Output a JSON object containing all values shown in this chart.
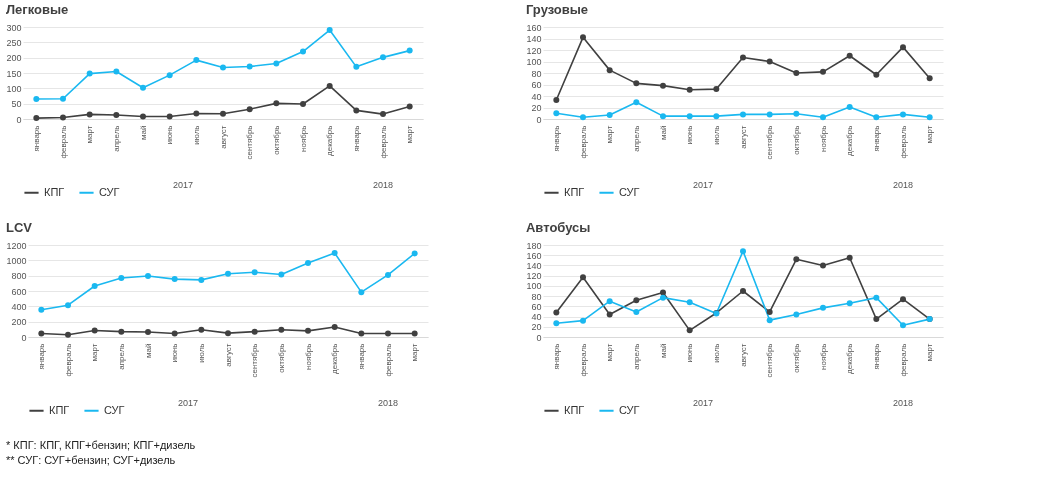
{
  "chart_data": [
    {
      "type": "line",
      "title": "Легковые",
      "categories": [
        "январь",
        "февраль",
        "март",
        "апрель",
        "май",
        "июнь",
        "июль",
        "август",
        "сентябрь",
        "октябрь",
        "ноябрь",
        "декабрь",
        "январь",
        "февраль",
        "март"
      ],
      "annotations": [
        "2017",
        "2018"
      ],
      "ylim": [
        0,
        300
      ],
      "yticks": [
        0,
        50,
        100,
        150,
        200,
        250,
        300
      ],
      "grid": "y",
      "legend": "bottom",
      "marker": "circle",
      "series": [
        {
          "name": "КПГ",
          "color": "#404040",
          "values": [
            3,
            5,
            15,
            13,
            8,
            8,
            18,
            17,
            32,
            51,
            49,
            108,
            28,
            16,
            41
          ]
        },
        {
          "name": "СУГ",
          "color": "#1ab8f0",
          "values": [
            65,
            66,
            148,
            155,
            102,
            143,
            192,
            168,
            171,
            181,
            220,
            290,
            170,
            201,
            223
          ]
        }
      ]
    },
    {
      "type": "line",
      "title": "Грузовые",
      "categories": [
        "январь",
        "февраль",
        "март",
        "апрель",
        "май",
        "июнь",
        "июль",
        "август",
        "сентябрь",
        "октябрь",
        "ноябрь",
        "декабрь",
        "январь",
        "февраль",
        "март"
      ],
      "annotations": [
        "2017",
        "2018"
      ],
      "ylim": [
        0,
        160
      ],
      "yticks": [
        0,
        20,
        40,
        60,
        80,
        100,
        120,
        140,
        160
      ],
      "grid": "y",
      "legend": "bottom",
      "marker": "circle",
      "series": [
        {
          "name": "КПГ",
          "color": "#404040",
          "values": [
            33,
            142,
            85,
            62,
            58,
            51,
            52,
            107,
            100,
            80,
            82,
            110,
            77,
            125,
            71
          ]
        },
        {
          "name": "СУГ",
          "color": "#1ab8f0",
          "values": [
            10,
            3,
            7,
            29,
            5,
            5,
            5,
            8,
            8,
            9,
            3,
            21,
            3,
            8,
            3
          ]
        }
      ]
    },
    {
      "type": "line",
      "title": "LCV",
      "categories": [
        "январь",
        "февраль",
        "март",
        "апрель",
        "май",
        "июнь",
        "июль",
        "август",
        "сентябрь",
        "октябрь",
        "ноябрь",
        "декабрь",
        "январь",
        "февраль",
        "март"
      ],
      "annotations": [
        "2017",
        "2018"
      ],
      "ylim": [
        0,
        1200
      ],
      "yticks": [
        0,
        200,
        400,
        600,
        800,
        1000,
        1200
      ],
      "grid": "y",
      "legend": "bottom",
      "marker": "circle",
      "series": [
        {
          "name": "КПГ",
          "color": "#404040",
          "values": [
            45,
            30,
            85,
            70,
            65,
            45,
            95,
            50,
            70,
            95,
            80,
            130,
            45,
            45,
            45
          ]
        },
        {
          "name": "СУГ",
          "color": "#1ab8f0",
          "values": [
            355,
            415,
            665,
            770,
            795,
            755,
            745,
            825,
            845,
            815,
            965,
            1095,
            585,
            810,
            1090
          ]
        }
      ]
    },
    {
      "type": "line",
      "title": "Автобусы",
      "categories": [
        "январь",
        "февраль",
        "март",
        "апрель",
        "май",
        "июнь",
        "июль",
        "август",
        "сентябрь",
        "октябрь",
        "ноябрь",
        "декабрь",
        "январь",
        "февраль",
        "март"
      ],
      "annotations": [
        "2017",
        "2018"
      ],
      "ylim": [
        0,
        180
      ],
      "yticks": [
        0,
        20,
        40,
        60,
        80,
        100,
        120,
        140,
        160,
        180
      ],
      "grid": "y",
      "legend": "bottom",
      "marker": "circle",
      "series": [
        {
          "name": "КПГ",
          "color": "#404040",
          "values": [
            48,
            117,
            44,
            72,
            87,
            13,
            47,
            90,
            49,
            152,
            140,
            155,
            35,
            74,
            35
          ]
        },
        {
          "name": "СУГ",
          "color": "#1ab8f0",
          "values": [
            27,
            32,
            70,
            49,
            77,
            68,
            46,
            168,
            33,
            44,
            57,
            66,
            77,
            23,
            35
          ]
        }
      ]
    },
    {
      "type": "other",
      "annotations": [
        "*  КПГ: КПГ, КПГ+бензин; КПГ+дизель",
        "** СУГ: СУГ+бензин; СУГ+дизель"
      ]
    }
  ]
}
